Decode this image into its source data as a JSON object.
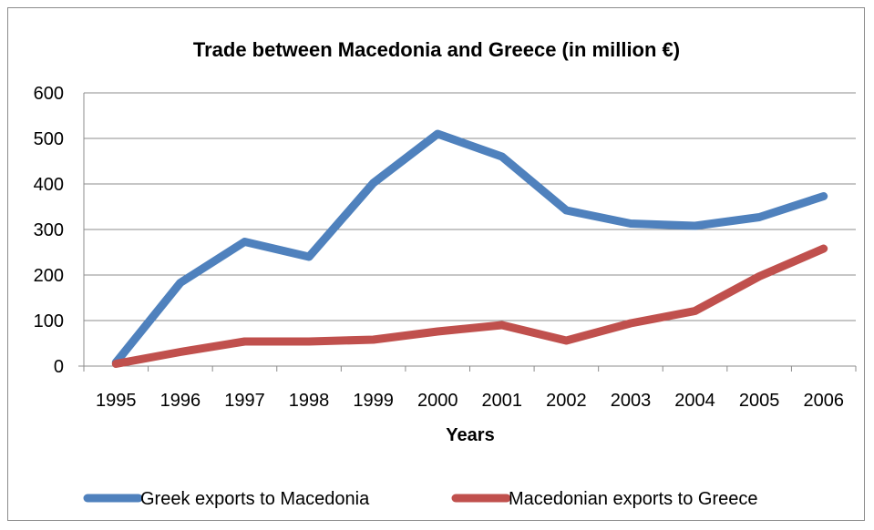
{
  "chart_data": {
    "type": "line",
    "title": "Trade between Macedonia and Greece (in million €)",
    "xlabel": "Years",
    "ylabel": "",
    "categories": [
      "1995",
      "1996",
      "1997",
      "1998",
      "1999",
      "2000",
      "2001",
      "2002",
      "2003",
      "2004",
      "2005",
      "2006"
    ],
    "ylim": [
      0,
      600
    ],
    "yticks": [
      "0",
      "100",
      "200",
      "300",
      "400",
      "500",
      "600"
    ],
    "grid": true,
    "legend_position": "bottom",
    "series": [
      {
        "name": "Greek exports to Macedonia",
        "color": "#4f81bd",
        "values": [
          8,
          183,
          273,
          240,
          402,
          510,
          460,
          342,
          313,
          308,
          327,
          373
        ]
      },
      {
        "name": "Macedonian exports to Greece",
        "color": "#c0504d",
        "values": [
          5,
          31,
          54,
          54,
          58,
          76,
          90,
          56,
          94,
          121,
          197,
          258
        ]
      }
    ]
  }
}
